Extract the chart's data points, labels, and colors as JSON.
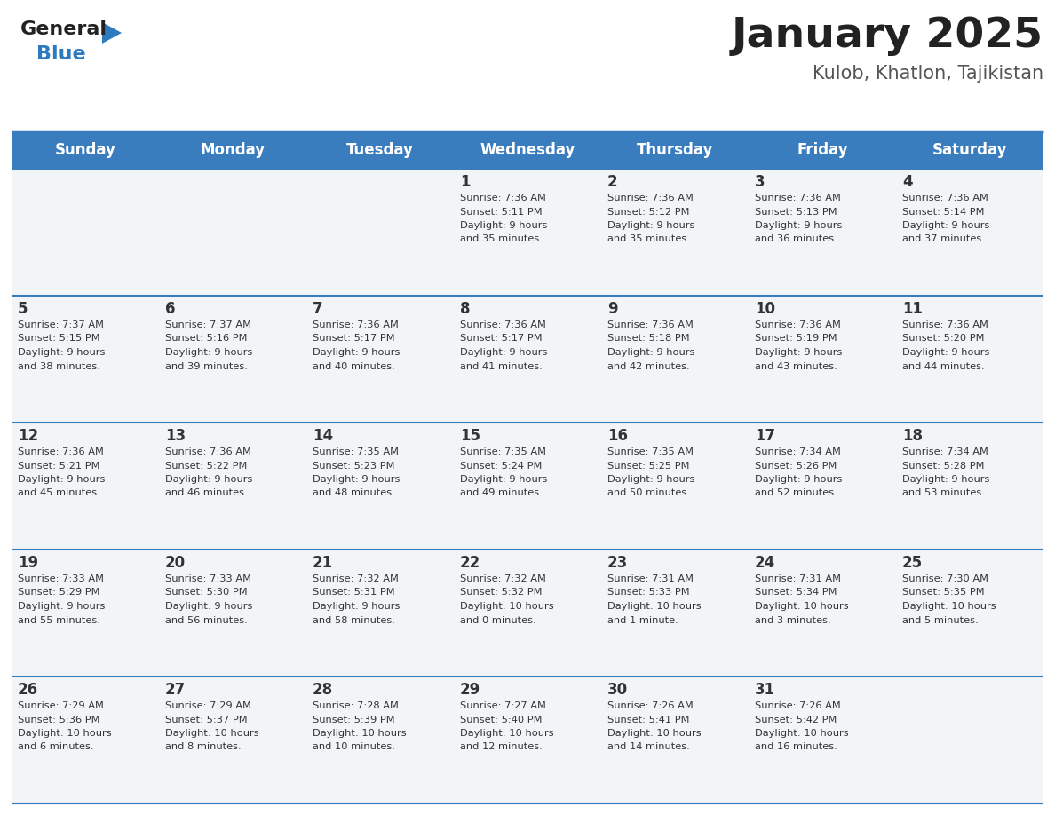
{
  "title": "January 2025",
  "subtitle": "Kulob, Khatlon, Tajikistan",
  "days_of_week": [
    "Sunday",
    "Monday",
    "Tuesday",
    "Wednesday",
    "Thursday",
    "Friday",
    "Saturday"
  ],
  "header_bg": "#3a7dbf",
  "header_text": "#ffffff",
  "cell_bg": "#f2f5f8",
  "border_color": "#3a7dbf",
  "day_number_color": "#333333",
  "info_text_color": "#333333",
  "title_color": "#222222",
  "subtitle_color": "#555555",
  "logo_general_color": "#222222",
  "logo_blue_color": "#2e7abf",
  "calendar_data": [
    {
      "day": 1,
      "col": 3,
      "row": 0,
      "sunrise": "7:36 AM",
      "sunset": "5:11 PM",
      "daylight_hours": 9,
      "daylight_minutes": 35
    },
    {
      "day": 2,
      "col": 4,
      "row": 0,
      "sunrise": "7:36 AM",
      "sunset": "5:12 PM",
      "daylight_hours": 9,
      "daylight_minutes": 35
    },
    {
      "day": 3,
      "col": 5,
      "row": 0,
      "sunrise": "7:36 AM",
      "sunset": "5:13 PM",
      "daylight_hours": 9,
      "daylight_minutes": 36
    },
    {
      "day": 4,
      "col": 6,
      "row": 0,
      "sunrise": "7:36 AM",
      "sunset": "5:14 PM",
      "daylight_hours": 9,
      "daylight_minutes": 37
    },
    {
      "day": 5,
      "col": 0,
      "row": 1,
      "sunrise": "7:37 AM",
      "sunset": "5:15 PM",
      "daylight_hours": 9,
      "daylight_minutes": 38
    },
    {
      "day": 6,
      "col": 1,
      "row": 1,
      "sunrise": "7:37 AM",
      "sunset": "5:16 PM",
      "daylight_hours": 9,
      "daylight_minutes": 39
    },
    {
      "day": 7,
      "col": 2,
      "row": 1,
      "sunrise": "7:36 AM",
      "sunset": "5:17 PM",
      "daylight_hours": 9,
      "daylight_minutes": 40
    },
    {
      "day": 8,
      "col": 3,
      "row": 1,
      "sunrise": "7:36 AM",
      "sunset": "5:17 PM",
      "daylight_hours": 9,
      "daylight_minutes": 41
    },
    {
      "day": 9,
      "col": 4,
      "row": 1,
      "sunrise": "7:36 AM",
      "sunset": "5:18 PM",
      "daylight_hours": 9,
      "daylight_minutes": 42
    },
    {
      "day": 10,
      "col": 5,
      "row": 1,
      "sunrise": "7:36 AM",
      "sunset": "5:19 PM",
      "daylight_hours": 9,
      "daylight_minutes": 43
    },
    {
      "day": 11,
      "col": 6,
      "row": 1,
      "sunrise": "7:36 AM",
      "sunset": "5:20 PM",
      "daylight_hours": 9,
      "daylight_minutes": 44
    },
    {
      "day": 12,
      "col": 0,
      "row": 2,
      "sunrise": "7:36 AM",
      "sunset": "5:21 PM",
      "daylight_hours": 9,
      "daylight_minutes": 45
    },
    {
      "day": 13,
      "col": 1,
      "row": 2,
      "sunrise": "7:36 AM",
      "sunset": "5:22 PM",
      "daylight_hours": 9,
      "daylight_minutes": 46
    },
    {
      "day": 14,
      "col": 2,
      "row": 2,
      "sunrise": "7:35 AM",
      "sunset": "5:23 PM",
      "daylight_hours": 9,
      "daylight_minutes": 48
    },
    {
      "day": 15,
      "col": 3,
      "row": 2,
      "sunrise": "7:35 AM",
      "sunset": "5:24 PM",
      "daylight_hours": 9,
      "daylight_minutes": 49
    },
    {
      "day": 16,
      "col": 4,
      "row": 2,
      "sunrise": "7:35 AM",
      "sunset": "5:25 PM",
      "daylight_hours": 9,
      "daylight_minutes": 50
    },
    {
      "day": 17,
      "col": 5,
      "row": 2,
      "sunrise": "7:34 AM",
      "sunset": "5:26 PM",
      "daylight_hours": 9,
      "daylight_minutes": 52
    },
    {
      "day": 18,
      "col": 6,
      "row": 2,
      "sunrise": "7:34 AM",
      "sunset": "5:28 PM",
      "daylight_hours": 9,
      "daylight_minutes": 53
    },
    {
      "day": 19,
      "col": 0,
      "row": 3,
      "sunrise": "7:33 AM",
      "sunset": "5:29 PM",
      "daylight_hours": 9,
      "daylight_minutes": 55
    },
    {
      "day": 20,
      "col": 1,
      "row": 3,
      "sunrise": "7:33 AM",
      "sunset": "5:30 PM",
      "daylight_hours": 9,
      "daylight_minutes": 56
    },
    {
      "day": 21,
      "col": 2,
      "row": 3,
      "sunrise": "7:32 AM",
      "sunset": "5:31 PM",
      "daylight_hours": 9,
      "daylight_minutes": 58
    },
    {
      "day": 22,
      "col": 3,
      "row": 3,
      "sunrise": "7:32 AM",
      "sunset": "5:32 PM",
      "daylight_hours": 10,
      "daylight_minutes": 0
    },
    {
      "day": 23,
      "col": 4,
      "row": 3,
      "sunrise": "7:31 AM",
      "sunset": "5:33 PM",
      "daylight_hours": 10,
      "daylight_minutes": 1
    },
    {
      "day": 24,
      "col": 5,
      "row": 3,
      "sunrise": "7:31 AM",
      "sunset": "5:34 PM",
      "daylight_hours": 10,
      "daylight_minutes": 3
    },
    {
      "day": 25,
      "col": 6,
      "row": 3,
      "sunrise": "7:30 AM",
      "sunset": "5:35 PM",
      "daylight_hours": 10,
      "daylight_minutes": 5
    },
    {
      "day": 26,
      "col": 0,
      "row": 4,
      "sunrise": "7:29 AM",
      "sunset": "5:36 PM",
      "daylight_hours": 10,
      "daylight_minutes": 6
    },
    {
      "day": 27,
      "col": 1,
      "row": 4,
      "sunrise": "7:29 AM",
      "sunset": "5:37 PM",
      "daylight_hours": 10,
      "daylight_minutes": 8
    },
    {
      "day": 28,
      "col": 2,
      "row": 4,
      "sunrise": "7:28 AM",
      "sunset": "5:39 PM",
      "daylight_hours": 10,
      "daylight_minutes": 10
    },
    {
      "day": 29,
      "col": 3,
      "row": 4,
      "sunrise": "7:27 AM",
      "sunset": "5:40 PM",
      "daylight_hours": 10,
      "daylight_minutes": 12
    },
    {
      "day": 30,
      "col": 4,
      "row": 4,
      "sunrise": "7:26 AM",
      "sunset": "5:41 PM",
      "daylight_hours": 10,
      "daylight_minutes": 14
    },
    {
      "day": 31,
      "col": 5,
      "row": 4,
      "sunrise": "7:26 AM",
      "sunset": "5:42 PM",
      "daylight_hours": 10,
      "daylight_minutes": 16
    }
  ]
}
